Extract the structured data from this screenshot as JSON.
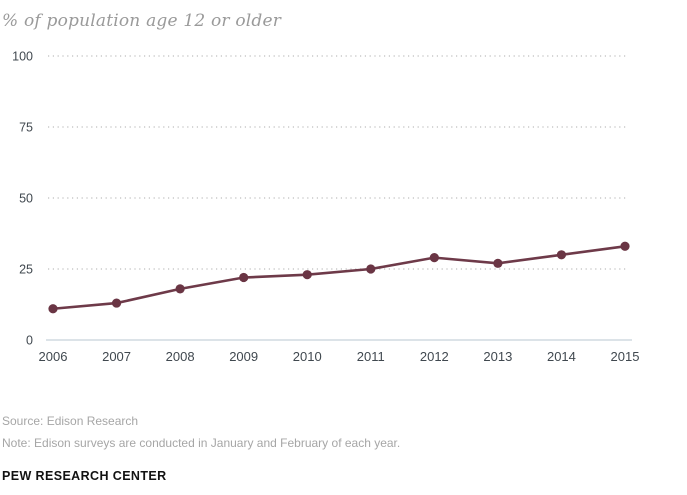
{
  "title": "% of population age 12 or older",
  "footer": {
    "source": "Source: Edison Research",
    "note": "Note: Edison surveys are conducted in January and February of each year.",
    "branding": "PEW RESEARCH CENTER"
  },
  "chart_data": {
    "type": "line",
    "categories": [
      "2006",
      "2007",
      "2008",
      "2009",
      "2010",
      "2011",
      "2012",
      "2013",
      "2014",
      "2015"
    ],
    "values": [
      11,
      13,
      18,
      22,
      23,
      25,
      29,
      27,
      30,
      33
    ],
    "title": "% of population age 12 or older",
    "xlabel": "",
    "ylabel": "",
    "ylim": [
      0,
      100
    ],
    "yticks": [
      0,
      25,
      50,
      75,
      100
    ],
    "grid": "horizontal dotted gridlines at 25/50/75/100, solid baseline at 0",
    "legend": "none",
    "colors": {
      "line": "#6e3a49",
      "marker": "#6a3544",
      "gridline": "#c9c9c9",
      "axis_line": "#b9c7d1",
      "tick_label": "#40484f",
      "title": "#9a9a9a",
      "source_note": "#a6a6a6",
      "branding": "#121212"
    }
  }
}
